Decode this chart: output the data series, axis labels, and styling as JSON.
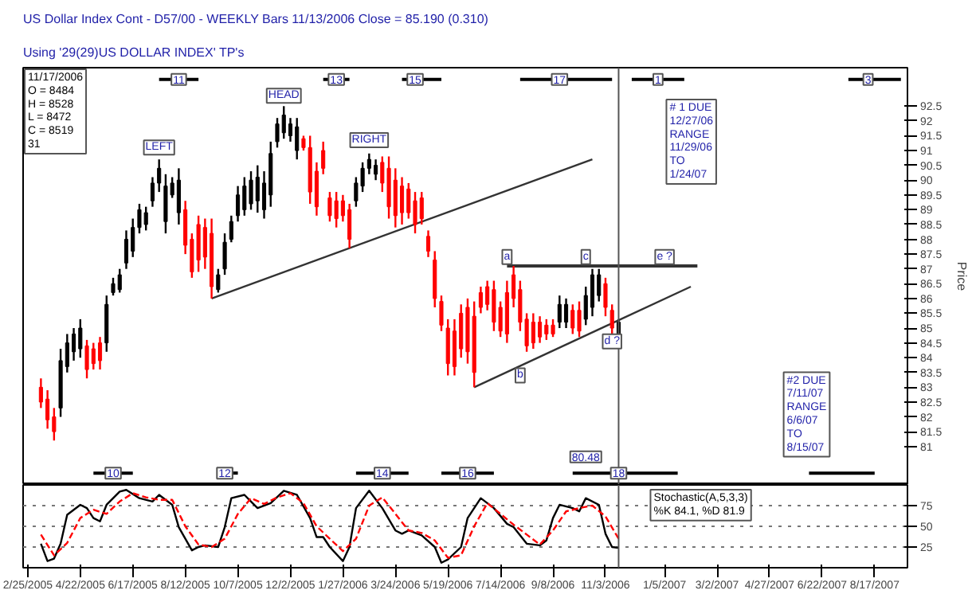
{
  "chart_data": [
    {
      "type": "candlestick",
      "title": "US Dollar Index Cont - D57/00 - WEEKLY Bars 11/13/2006 Close = 85.190 (0.310)",
      "subtitle": "Using '29(29)US DOLLAR INDEX' TP's",
      "ylabel": "Price",
      "x": [
        "2005-03-11",
        "2005-03-18",
        "2005-03-25",
        "2005-04-01",
        "2005-04-08",
        "2005-04-15",
        "2005-04-22",
        "2005-04-29",
        "2005-05-06",
        "2005-05-13",
        "2005-05-20",
        "2005-05-27",
        "2005-06-03",
        "2005-06-10",
        "2005-06-17",
        "2005-06-24",
        "2005-07-01",
        "2005-07-08",
        "2005-07-15",
        "2005-07-22",
        "2005-07-29",
        "2005-08-05",
        "2005-08-12",
        "2005-08-19",
        "2005-08-26",
        "2005-09-02",
        "2005-09-09",
        "2005-09-16",
        "2005-09-23",
        "2005-09-30",
        "2005-10-07",
        "2005-10-14",
        "2005-10-21",
        "2005-10-28",
        "2005-11-04",
        "2005-11-11",
        "2005-11-18",
        "2005-11-25",
        "2005-12-02",
        "2005-12-09",
        "2005-12-16",
        "2005-12-23",
        "2005-12-30",
        "2006-01-06",
        "2006-01-13",
        "2006-01-20",
        "2006-01-27",
        "2006-02-03",
        "2006-02-10",
        "2006-02-17",
        "2006-02-24",
        "2006-03-03",
        "2006-03-10",
        "2006-03-17",
        "2006-03-24",
        "2006-03-31",
        "2006-04-07",
        "2006-04-14",
        "2006-04-21",
        "2006-04-28",
        "2006-05-05",
        "2006-05-12",
        "2006-05-19",
        "2006-05-26",
        "2006-06-02",
        "2006-06-09",
        "2006-06-16",
        "2006-06-23",
        "2006-06-30",
        "2006-07-07",
        "2006-07-14",
        "2006-07-21",
        "2006-07-28",
        "2006-08-04",
        "2006-08-11",
        "2006-08-18",
        "2006-08-25",
        "2006-09-01",
        "2006-09-08",
        "2006-09-15",
        "2006-09-22",
        "2006-09-29",
        "2006-10-06",
        "2006-10-13",
        "2006-10-20",
        "2006-10-27",
        "2006-11-03",
        "2006-11-10",
        "2006-11-17"
      ],
      "ohlc": [
        [
          83.0,
          83.3,
          82.3,
          82.5
        ],
        [
          82.6,
          82.9,
          81.6,
          81.9
        ],
        [
          82.0,
          82.3,
          81.2,
          81.5
        ],
        [
          82.3,
          84.3,
          82.0,
          83.9
        ],
        [
          83.7,
          84.8,
          83.5,
          84.5
        ],
        [
          84.2,
          85.0,
          83.9,
          84.8
        ],
        [
          84.3,
          85.3,
          84.0,
          85.0
        ],
        [
          84.4,
          84.6,
          83.3,
          83.6
        ],
        [
          84.3,
          84.5,
          83.6,
          83.8
        ],
        [
          84.5,
          84.7,
          83.6,
          83.9
        ],
        [
          84.5,
          86.1,
          84.2,
          85.8
        ],
        [
          86.2,
          86.7,
          86.1,
          86.5
        ],
        [
          86.3,
          87.0,
          86.2,
          86.8
        ],
        [
          87.2,
          88.3,
          87.0,
          88.0
        ],
        [
          87.6,
          88.7,
          87.4,
          88.4
        ],
        [
          88.4,
          89.2,
          88.2,
          89.0
        ],
        [
          88.5,
          89.1,
          88.3,
          88.9
        ],
        [
          89.3,
          90.1,
          89.1,
          89.9
        ],
        [
          89.9,
          90.7,
          89.6,
          90.4
        ],
        [
          88.6,
          90.2,
          88.2,
          89.8
        ],
        [
          89.5,
          90.1,
          89.4,
          89.9
        ],
        [
          88.9,
          90.4,
          88.5,
          90.0
        ],
        [
          89.0,
          89.3,
          87.5,
          87.8
        ],
        [
          88.0,
          88.2,
          86.7,
          86.9
        ],
        [
          88.5,
          88.8,
          86.9,
          87.3
        ],
        [
          88.4,
          88.7,
          87.0,
          87.4
        ],
        [
          88.2,
          88.7,
          86.0,
          86.4
        ],
        [
          86.3,
          87.0,
          86.2,
          86.8
        ],
        [
          87.0,
          88.2,
          86.8,
          87.9
        ],
        [
          88.0,
          88.8,
          87.9,
          88.6
        ],
        [
          88.8,
          89.8,
          88.6,
          89.5
        ],
        [
          89.0,
          90.1,
          88.8,
          89.8
        ],
        [
          89.2,
          90.3,
          89.0,
          90.0
        ],
        [
          89.3,
          90.5,
          88.9,
          90.1
        ],
        [
          89.0,
          90.3,
          88.7,
          89.9
        ],
        [
          89.5,
          91.3,
          89.1,
          90.9
        ],
        [
          91.3,
          92.1,
          91.1,
          91.9
        ],
        [
          91.6,
          92.5,
          91.4,
          92.2
        ],
        [
          91.5,
          92.1,
          91.3,
          91.9
        ],
        [
          91.0,
          92.1,
          90.7,
          91.8
        ],
        [
          91.4,
          91.5,
          91.0,
          91.1
        ],
        [
          91.1,
          91.5,
          89.2,
          89.6
        ],
        [
          90.3,
          90.6,
          88.8,
          89.1
        ],
        [
          91.0,
          91.3,
          90.2,
          90.4
        ],
        [
          89.4,
          89.6,
          88.6,
          88.8
        ],
        [
          89.3,
          89.6,
          88.4,
          88.7
        ],
        [
          89.3,
          89.5,
          88.6,
          88.8
        ],
        [
          89.0,
          89.2,
          87.7,
          88.0
        ],
        [
          89.3,
          90.1,
          89.1,
          89.9
        ],
        [
          89.8,
          90.6,
          89.6,
          90.4
        ],
        [
          90.4,
          90.9,
          90.2,
          90.7
        ],
        [
          90.2,
          90.7,
          90.0,
          90.5
        ],
        [
          90.6,
          90.8,
          89.6,
          89.9
        ],
        [
          90.4,
          90.8,
          88.7,
          89.1
        ],
        [
          90.0,
          90.4,
          88.4,
          88.8
        ],
        [
          89.8,
          90.1,
          88.5,
          88.9
        ],
        [
          89.7,
          89.9,
          88.7,
          88.9
        ],
        [
          89.3,
          89.6,
          88.2,
          88.5
        ],
        [
          89.4,
          89.6,
          88.5,
          88.7
        ],
        [
          88.1,
          88.3,
          87.4,
          87.6
        ],
        [
          87.3,
          87.6,
          85.7,
          86.0
        ],
        [
          85.9,
          86.1,
          84.9,
          85.1
        ],
        [
          85.0,
          85.3,
          83.4,
          83.8
        ],
        [
          84.9,
          85.3,
          83.4,
          83.7
        ],
        [
          85.5,
          85.8,
          84.0,
          84.3
        ],
        [
          85.7,
          86.0,
          83.8,
          84.2
        ],
        [
          85.4,
          85.9,
          83.0,
          83.5
        ],
        [
          86.2,
          86.4,
          85.5,
          85.7
        ],
        [
          86.4,
          86.6,
          85.6,
          85.8
        ],
        [
          86.3,
          86.6,
          84.9,
          85.2
        ],
        [
          85.7,
          85.9,
          84.7,
          84.9
        ],
        [
          86.2,
          86.6,
          84.5,
          84.8
        ],
        [
          86.8,
          87.1,
          85.7,
          86.0
        ],
        [
          86.3,
          86.6,
          84.9,
          85.2
        ],
        [
          85.3,
          85.5,
          84.2,
          84.4
        ],
        [
          85.2,
          85.5,
          84.3,
          84.5
        ],
        [
          85.2,
          85.4,
          84.5,
          84.7
        ],
        [
          85.1,
          85.3,
          84.6,
          84.8
        ],
        [
          85.1,
          85.3,
          84.7,
          84.8
        ],
        [
          85.2,
          86.1,
          85.0,
          85.8
        ],
        [
          85.2,
          86.0,
          85.0,
          85.8
        ],
        [
          85.6,
          85.8,
          84.8,
          85.0
        ],
        [
          85.6,
          85.9,
          84.7,
          84.9
        ],
        [
          85.3,
          86.4,
          85.1,
          86.1
        ],
        [
          85.7,
          87.0,
          85.4,
          86.8
        ],
        [
          86.1,
          87.0,
          85.9,
          86.8
        ],
        [
          86.5,
          86.7,
          85.4,
          85.7
        ],
        [
          85.6,
          85.8,
          84.8,
          85.0
        ],
        [
          84.8,
          85.3,
          84.7,
          85.2
        ]
      ],
      "colors": [
        "#ff0000",
        "#ff0000",
        "#ff0000",
        "#000000",
        "#000000",
        "#000000",
        "#000000",
        "#ff0000",
        "#ff0000",
        "#ff0000",
        "#000000",
        "#000000",
        "#000000",
        "#000000",
        "#000000",
        "#000000",
        "#000000",
        "#000000",
        "#000000",
        "#000000",
        "#000000",
        "#000000",
        "#ff0000",
        "#ff0000",
        "#ff0000",
        "#ff0000",
        "#ff0000",
        "#000000",
        "#000000",
        "#000000",
        "#000000",
        "#000000",
        "#000000",
        "#000000",
        "#000000",
        "#000000",
        "#000000",
        "#000000",
        "#000000",
        "#000000",
        "#ff0000",
        "#ff0000",
        "#ff0000",
        "#ff0000",
        "#ff0000",
        "#ff0000",
        "#ff0000",
        "#ff0000",
        "#000000",
        "#000000",
        "#000000",
        "#000000",
        "#ff0000",
        "#ff0000",
        "#ff0000",
        "#ff0000",
        "#ff0000",
        "#ff0000",
        "#ff0000",
        "#ff0000",
        "#ff0000",
        "#ff0000",
        "#ff0000",
        "#ff0000",
        "#ff0000",
        "#ff0000",
        "#ff0000",
        "#ff0000",
        "#ff0000",
        "#ff0000",
        "#ff0000",
        "#ff0000",
        "#ff0000",
        "#ff0000",
        "#ff0000",
        "#ff0000",
        "#ff0000",
        "#ff0000",
        "#ff0000",
        "#000000",
        "#000000",
        "#ff0000",
        "#ff0000",
        "#000000",
        "#000000",
        "#000000",
        "#ff0000",
        "#ff0000",
        "#000000"
      ],
      "series": [
        {
          "type": "line",
          "color": "#333333",
          "x": [
            "2005-09-09",
            "2006-10-20"
          ],
          "values": [
            86.0,
            90.7
          ]
        },
        {
          "type": "line",
          "color": "#333333",
          "x": [
            "2006-07-21",
            "2007-02-09"
          ],
          "values": [
            87.1,
            87.1
          ]
        },
        {
          "type": "line",
          "color": "#333333",
          "x": [
            "2006-06-16",
            "2007-02-02"
          ],
          "values": [
            83.0,
            86.4
          ]
        },
        {
          "type": "line",
          "color": "#000000",
          "x": [
            "2005-07-15",
            "2005-08-26"
          ],
          "values": [
            93.4,
            93.4
          ]
        },
        {
          "type": "line",
          "color": "#000000",
          "x": [
            "2006-01-06",
            "2006-02-03"
          ],
          "values": [
            93.4,
            93.4
          ]
        },
        {
          "type": "line",
          "color": "#000000",
          "x": [
            "2006-03-31",
            "2006-05-12"
          ],
          "values": [
            93.4,
            93.4
          ]
        },
        {
          "type": "line",
          "color": "#000000",
          "x": [
            "2006-08-04",
            "2006-11-10"
          ],
          "values": [
            93.4,
            93.4
          ]
        },
        {
          "type": "line",
          "color": "#000000",
          "x": [
            "2006-12-01",
            "2007-01-26"
          ],
          "values": [
            93.4,
            93.4
          ]
        },
        {
          "type": "line",
          "color": "#000000",
          "x": [
            "2007-07-20",
            "2007-09-14"
          ],
          "values": [
            93.4,
            93.4
          ]
        },
        {
          "type": "line",
          "color": "#000000",
          "x": [
            "2005-05-06",
            "2005-06-17"
          ],
          "values": [
            80.1,
            80.1
          ]
        },
        {
          "type": "line",
          "color": "#000000",
          "x": [
            "2005-09-16",
            "2005-10-07"
          ],
          "values": [
            80.1,
            80.1
          ]
        },
        {
          "type": "line",
          "color": "#000000",
          "x": [
            "2006-02-10",
            "2006-04-07"
          ],
          "values": [
            80.1,
            80.1
          ]
        },
        {
          "type": "line",
          "color": "#000000",
          "x": [
            "2006-05-12",
            "2006-07-07"
          ],
          "values": [
            80.1,
            80.1
          ]
        },
        {
          "type": "line",
          "color": "#000000",
          "x": [
            "2006-09-29",
            "2007-01-19"
          ],
          "values": [
            80.1,
            80.1
          ]
        },
        {
          "type": "line",
          "color": "#000000",
          "x": [
            "2007-06-08",
            "2007-08-17"
          ],
          "values": [
            80.1,
            80.1
          ]
        }
      ],
      "xlim": [
        "2005-02-20",
        "2007-09-21"
      ],
      "ylim": [
        79.7,
        93.8
      ],
      "yticks": [
        81,
        81.5,
        82,
        82.5,
        83,
        83.5,
        84,
        84.5,
        85,
        85.5,
        86,
        86.5,
        87,
        87.5,
        88,
        88.5,
        89,
        89.5,
        90,
        90.5,
        91,
        91.5,
        92,
        92.5
      ],
      "tick_labels": "y",
      "ref_lines": [
        {
          "axis": "x",
          "value": "2006-11-17",
          "color": "#555555"
        }
      ],
      "annotations": [
        "11/17/2006\nO = 8484\nH = 8528\nL = 8472\nC = 8519\n   31",
        {
          "text": "LEFT",
          "x": "2005-07-15",
          "y": 91.1
        },
        {
          "text": "HEAD",
          "x": "2005-11-25",
          "y": 92.85
        },
        {
          "text": "RIGHT",
          "x": "2006-02-24",
          "y": 91.35
        },
        {
          "text": "a",
          "x": "2006-07-21",
          "y": 87.4
        },
        {
          "text": "b",
          "x": "2006-08-04",
          "y": 83.4
        },
        {
          "text": "c",
          "x": "2006-10-13",
          "y": 87.4
        },
        {
          "text": "d ?",
          "x": "2006-11-10",
          "y": 84.55
        },
        {
          "text": "e ?",
          "x": "2007-01-05",
          "y": 87.4
        },
        "# 1 DUE\n12/27/06\nRANGE\n11/29/06\nTO\n1/24/07",
        "#2 DUE\n7/11/07\nRANGE\n6/6/07\nTO\n8/15/07",
        {
          "text": "80.48",
          "x": "2006-10-13",
          "y": 80.65
        },
        {
          "text": "11",
          "x": "2005-08-05",
          "y": 93.4
        },
        {
          "text": "13",
          "x": "2006-01-20",
          "y": 93.4
        },
        {
          "text": "15",
          "x": "2006-04-14",
          "y": 93.4
        },
        {
          "text": "17",
          "x": "2006-09-15",
          "y": 93.4
        },
        {
          "text": "1",
          "x": "2006-12-29",
          "y": 93.4
        },
        {
          "text": "3",
          "x": "2007-08-10",
          "y": 93.4
        },
        {
          "text": "10",
          "x": "2005-05-27",
          "y": 80.1
        },
        {
          "text": "12",
          "x": "2005-09-23",
          "y": 80.1
        },
        {
          "text": "14",
          "x": "2006-03-10",
          "y": 80.1
        },
        {
          "text": "16",
          "x": "2006-06-09",
          "y": 80.1
        },
        {
          "text": "18",
          "x": "2006-11-17",
          "y": 80.1
        }
      ]
    },
    {
      "type": "line",
      "series": [
        {
          "color": "#000000",
          "line_style": "solid",
          "x": [
            "2005-03-11",
            "2005-03-18",
            "2005-03-25",
            "2005-04-01",
            "2005-04-08",
            "2005-04-22",
            "2005-04-29",
            "2005-05-06",
            "2005-05-13",
            "2005-05-20",
            "2005-06-03",
            "2005-06-10",
            "2005-06-24",
            "2005-07-08",
            "2005-07-15",
            "2005-07-29",
            "2005-08-05",
            "2005-08-19",
            "2005-08-26",
            "2005-09-02",
            "2005-09-16",
            "2005-09-23",
            "2005-09-30",
            "2005-10-14",
            "2005-10-21",
            "2005-10-28",
            "2005-11-11",
            "2005-11-25",
            "2005-12-09",
            "2005-12-23",
            "2005-12-30",
            "2006-01-06",
            "2006-01-13",
            "2006-01-27",
            "2006-02-03",
            "2006-02-10",
            "2006-02-24",
            "2006-03-10",
            "2006-03-24",
            "2006-03-31",
            "2006-04-07",
            "2006-04-21",
            "2006-05-05",
            "2006-05-12",
            "2006-05-19",
            "2006-06-02",
            "2006-06-09",
            "2006-06-23",
            "2006-07-07",
            "2006-07-21",
            "2006-07-28",
            "2006-08-11",
            "2006-08-25",
            "2006-09-01",
            "2006-09-08",
            "2006-09-15",
            "2006-09-29",
            "2006-10-06",
            "2006-10-13",
            "2006-10-27",
            "2006-11-03",
            "2006-11-10",
            "2006-11-17"
          ],
          "values": [
            29,
            8,
            11,
            29,
            64,
            76,
            72,
            60,
            56,
            76,
            92,
            94,
            84,
            80,
            88,
            76,
            49,
            21,
            25,
            27,
            25,
            49,
            84,
            88,
            80,
            72,
            78,
            93,
            88,
            60,
            37,
            37,
            25,
            8,
            25,
            72,
            93,
            72,
            45,
            41,
            45,
            39,
            25,
            6,
            10,
            25,
            60,
            84,
            72,
            53,
            49,
            29,
            27,
            33,
            60,
            76,
            72,
            68,
            84,
            76,
            41,
            25,
            24
          ]
        },
        {
          "color": "#ff0000",
          "line_style": "dashed",
          "x": [
            "2005-03-11",
            "2005-03-25",
            "2005-04-08",
            "2005-04-22",
            "2005-05-06",
            "2005-05-20",
            "2005-06-03",
            "2005-06-17",
            "2005-07-01",
            "2005-07-15",
            "2005-07-29",
            "2005-08-12",
            "2005-08-26",
            "2005-09-09",
            "2005-09-23",
            "2005-10-07",
            "2005-10-21",
            "2005-11-04",
            "2005-11-18",
            "2005-12-02",
            "2005-12-16",
            "2005-12-30",
            "2006-01-13",
            "2006-01-27",
            "2006-02-10",
            "2006-02-24",
            "2006-03-10",
            "2006-03-24",
            "2006-04-07",
            "2006-04-21",
            "2006-05-05",
            "2006-05-19",
            "2006-06-02",
            "2006-06-16",
            "2006-06-30",
            "2006-07-14",
            "2006-07-28",
            "2006-08-11",
            "2006-08-25",
            "2006-09-08",
            "2006-09-22",
            "2006-10-06",
            "2006-10-20",
            "2006-11-03",
            "2006-11-17"
          ],
          "values": [
            40,
            15,
            30,
            60,
            70,
            65,
            80,
            90,
            85,
            82,
            82,
            50,
            28,
            25,
            35,
            65,
            84,
            77,
            85,
            90,
            78,
            50,
            35,
            20,
            35,
            75,
            85,
            65,
            45,
            42,
            33,
            12,
            15,
            50,
            78,
            65,
            52,
            40,
            28,
            45,
            68,
            72,
            75,
            62,
            35
          ]
        }
      ],
      "xlim": [
        "2005-02-20",
        "2007-09-21"
      ],
      "ylim": [
        0,
        100
      ],
      "xticks": [
        {
          "value": "2005-02-25",
          "label": "2/25/2005"
        },
        {
          "value": "2005-04-22",
          "label": "4/22/2005"
        },
        {
          "value": "2005-06-17",
          "label": "6/17/2005"
        },
        {
          "value": "2005-08-12",
          "label": "8/12/2005"
        },
        {
          "value": "2005-10-07",
          "label": "10/7/2005"
        },
        {
          "value": "2005-12-02",
          "label": "12/2/2005"
        },
        {
          "value": "2006-01-27",
          "label": "1/27/2006"
        },
        {
          "value": "2006-03-24",
          "label": "3/24/2006"
        },
        {
          "value": "2006-05-19",
          "label": "5/19/2006"
        },
        {
          "value": "2006-07-14",
          "label": "7/14/2006"
        },
        {
          "value": "2006-09-08",
          "label": "9/8/2006"
        },
        {
          "value": "2006-11-03",
          "label": "11/3/2006"
        },
        {
          "value": "2007-01-05",
          "label": "1/5/2007"
        },
        {
          "value": "2007-03-02",
          "label": "3/2/2007"
        },
        {
          "value": "2007-04-27",
          "label": "4/27/2007"
        },
        {
          "value": "2007-06-22",
          "label": "6/22/2007"
        },
        {
          "value": "2007-08-17",
          "label": "8/17/2007"
        }
      ],
      "yticks": [
        25,
        50,
        75
      ],
      "grid": "y",
      "ref_lines": [
        {
          "axis": "x",
          "value": "2006-11-17",
          "color": "#555555"
        }
      ],
      "annotations": [
        "Stochastic(A,5,3,3)\n %K 84.1, %D 81.9"
      ]
    }
  ]
}
